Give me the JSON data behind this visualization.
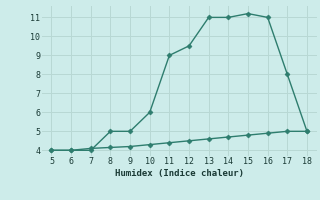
{
  "xlabel": "Humidex (Indice chaleur)",
  "background_color": "#cdecea",
  "grid_color": "#b8d8d4",
  "line_color": "#2e7d6e",
  "x_line1": [
    5,
    6,
    7,
    8,
    9,
    10,
    11,
    12,
    13,
    14,
    15,
    16,
    17,
    18
  ],
  "y_line1": [
    4,
    4,
    4,
    5,
    5,
    6,
    9,
    9.5,
    11,
    11,
    11.2,
    11,
    8,
    5
  ],
  "x_line2": [
    5,
    6,
    7,
    8,
    9,
    10,
    11,
    12,
    13,
    14,
    15,
    16,
    17,
    18
  ],
  "y_line2": [
    4,
    4,
    4.1,
    4.15,
    4.2,
    4.3,
    4.4,
    4.5,
    4.6,
    4.7,
    4.8,
    4.9,
    5.0,
    5.0
  ],
  "xlim": [
    4.5,
    18.5
  ],
  "ylim": [
    3.7,
    11.6
  ],
  "xticks": [
    5,
    6,
    7,
    8,
    9,
    10,
    11,
    12,
    13,
    14,
    15,
    16,
    17,
    18
  ],
  "yticks": [
    4,
    5,
    6,
    7,
    8,
    9,
    10,
    11
  ],
  "marker": "D",
  "markersize": 2.5,
  "linewidth": 1.0
}
